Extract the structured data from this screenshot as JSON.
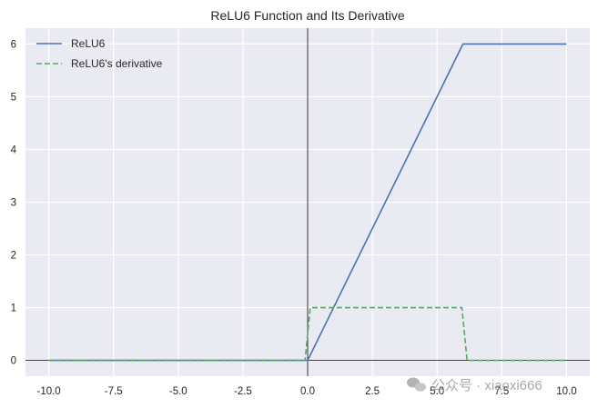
{
  "chart_data": {
    "type": "line",
    "title": "ReLU6 Function and Its Derivative",
    "xlabel": "",
    "ylabel": "",
    "xlim": [
      -10.9,
      10.9
    ],
    "ylim": [
      -0.3,
      6.3
    ],
    "grid": true,
    "background": "#eaeaf2",
    "legend_position": "top-left",
    "x_ticks": [
      -10,
      -7.5,
      -5,
      -2.5,
      0,
      2.5,
      5,
      7.5,
      10
    ],
    "x_tick_labels": [
      "-10.0",
      "-7.5",
      "-5.0",
      "-2.5",
      "0.0",
      "2.5",
      "5.0",
      "7.5",
      "10.0"
    ],
    "y_ticks": [
      0,
      1,
      2,
      3,
      4,
      5,
      6
    ],
    "y_tick_labels": [
      "0",
      "1",
      "2",
      "3",
      "4",
      "5",
      "6"
    ],
    "reference_lines": {
      "x": 0,
      "y": 0,
      "color": "#000000"
    },
    "series": [
      {
        "name": "ReLU6",
        "color": "#4c72b0",
        "style": "solid",
        "x": [
          -10,
          0,
          6,
          10
        ],
        "y": [
          0,
          0,
          6,
          6
        ]
      },
      {
        "name": "ReLU6's derivative",
        "color": "#55a868",
        "style": "dashed",
        "x": [
          -10,
          -0.1,
          0.1,
          5.96,
          6.16,
          10
        ],
        "y": [
          0,
          0,
          1,
          1,
          0,
          0
        ]
      }
    ]
  },
  "watermark": {
    "text": "公众号 · xiaoxi666",
    "icon": "wechat-icon"
  }
}
